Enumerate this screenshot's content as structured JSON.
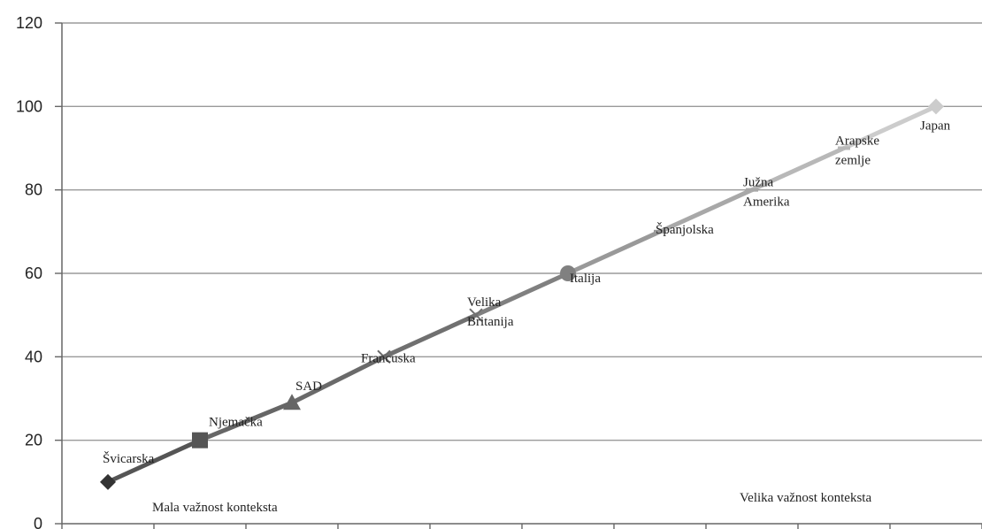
{
  "chart_data": {
    "type": "line",
    "ylim": [
      0,
      120
    ],
    "yticks": [
      0,
      20,
      40,
      60,
      80,
      100,
      120
    ],
    "grid": true,
    "series": [
      {
        "points": [
          {
            "label": "Švicarska",
            "y": 10,
            "marker": "diamond",
            "color": "#333333"
          },
          {
            "label": "Njemačka",
            "y": 20,
            "marker": "square",
            "color": "#555555"
          },
          {
            "label": "SAD",
            "y": 29,
            "marker": "triangle",
            "color": "#666666"
          },
          {
            "label": "Francuska",
            "y": 40,
            "marker": "x",
            "color": "#6a6a6a"
          },
          {
            "label": "Velika Britanija",
            "y": 50,
            "marker": "x",
            "color": "#707070"
          },
          {
            "label": "Italija",
            "y": 60,
            "marker": "circle",
            "color": "#808080"
          },
          {
            "label": "Španjolska",
            "y": 70,
            "marker": "dash",
            "color": "#999999"
          },
          {
            "label": "Južna Amerika",
            "y": 80,
            "marker": "dash",
            "color": "#a8a8a8"
          },
          {
            "label": "Arapske zemlje",
            "y": 90,
            "marker": "dash",
            "color": "#b8b8b8"
          },
          {
            "label": "Japan",
            "y": 100,
            "marker": "diamond",
            "color": "#cccccc"
          }
        ]
      }
    ],
    "annotations": {
      "left": "Mala važnost konteksta",
      "right": "Velika važnost konteksta"
    }
  }
}
